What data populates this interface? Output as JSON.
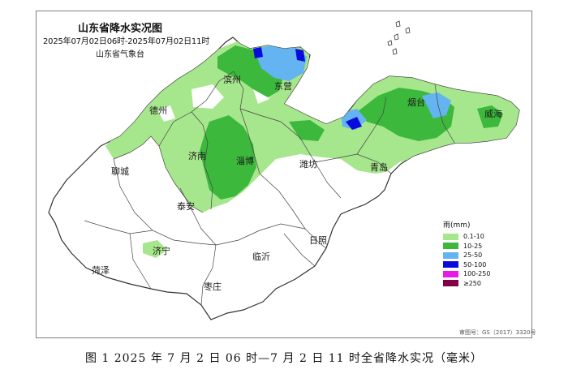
{
  "map": {
    "title": "山东省降水实况图",
    "subtitle": "2025年07月02日06时-2025年07月02日11时",
    "source": "山东省气象台",
    "cities": [
      {
        "id": "dezhou",
        "name": "德州"
      },
      {
        "id": "binzhou",
        "name": "滨州"
      },
      {
        "id": "dongying",
        "name": "东营"
      },
      {
        "id": "yantai",
        "name": "烟台"
      },
      {
        "id": "weihai",
        "name": "威海"
      },
      {
        "id": "liaocheng",
        "name": "聊城"
      },
      {
        "id": "jinan",
        "name": "济南"
      },
      {
        "id": "zibo",
        "name": "淄博"
      },
      {
        "id": "weifang",
        "name": "潍坊"
      },
      {
        "id": "qingdao",
        "name": "青岛"
      },
      {
        "id": "taian",
        "name": "泰安"
      },
      {
        "id": "rizhao",
        "name": "日照"
      },
      {
        "id": "jining",
        "name": "济宁"
      },
      {
        "id": "linyi",
        "name": "临沂"
      },
      {
        "id": "heze",
        "name": "菏泽"
      },
      {
        "id": "zaozhuang",
        "name": "枣庄"
      }
    ],
    "approval_number": "审图号：GS（2017）3320号"
  },
  "legend": {
    "title": "雨(mm)",
    "items": [
      {
        "label": "0.1-10",
        "color": "#a6e68c"
      },
      {
        "label": "10-25",
        "color": "#3cb83c"
      },
      {
        "label": "25-50",
        "color": "#63b4f0"
      },
      {
        "label": "50-100",
        "color": "#0a0adc"
      },
      {
        "label": "100-250",
        "color": "#e619e6"
      },
      {
        "label": "≥250",
        "color": "#820046"
      }
    ]
  },
  "caption": "图 1 2025 年 7 月 2 日 06 时—7 月 2 日 11 时全省降水实况（毫米）"
}
